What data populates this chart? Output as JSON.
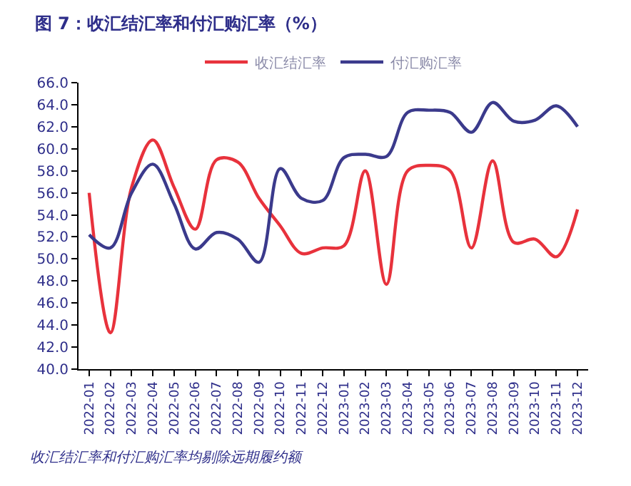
{
  "chart_data": {
    "type": "line",
    "title": "图 7：收汇结汇率和付汇购汇率（%）",
    "categories": [
      "2022-01",
      "2022-02",
      "2022-03",
      "2022-04",
      "2022-05",
      "2022-06",
      "2022-07",
      "2022-08",
      "2022-09",
      "2022-10",
      "2022-11",
      "2022-12",
      "2023-01",
      "2023-02",
      "2023-03",
      "2023-04",
      "2023-05",
      "2023-06",
      "2023-07",
      "2023-08",
      "2023-09",
      "2023-10",
      "2023-11",
      "2023-12"
    ],
    "series": [
      {
        "name": "收汇结汇率",
        "color": "#e8323c",
        "values": [
          56.0,
          43.3,
          56.5,
          60.8,
          56.5,
          52.7,
          59.0,
          58.8,
          55.5,
          53.0,
          50.5,
          51.0,
          51.2,
          58.0,
          47.7,
          58.0,
          58.5,
          58.0,
          51.0,
          58.9,
          51.5,
          51.8,
          50.2,
          54.5
        ]
      },
      {
        "name": "付汇购汇率",
        "color": "#3b3a8c",
        "values": [
          52.2,
          51.0,
          56.0,
          58.6,
          55.0,
          50.9,
          52.4,
          51.8,
          49.7,
          58.2,
          55.5,
          55.3,
          59.2,
          59.5,
          59.3,
          63.3,
          63.5,
          63.3,
          61.5,
          64.2,
          62.5,
          62.6,
          63.9,
          62.0
        ]
      }
    ],
    "ylim": [
      40,
      66
    ],
    "yticks": [
      {
        "value": 40,
        "label": "40.0"
      },
      {
        "value": 42,
        "label": "42.0"
      },
      {
        "value": 44,
        "label": "44.0"
      },
      {
        "value": 46,
        "label": "46.0"
      },
      {
        "value": 48,
        "label": "48.0"
      },
      {
        "value": 50,
        "label": "50.0"
      },
      {
        "value": 52,
        "label": "52.0"
      },
      {
        "value": 54,
        "label": "54.0"
      },
      {
        "value": 56,
        "label": "56.0"
      },
      {
        "value": 58,
        "label": "58.0"
      },
      {
        "value": 60,
        "label": "60.0"
      },
      {
        "value": 62,
        "label": "62.0"
      },
      {
        "value": 64,
        "label": "64.0"
      },
      {
        "value": 66,
        "label": "66.0"
      }
    ],
    "grid": false,
    "legend": "top",
    "marker": "none",
    "line_style": "solid",
    "annotations": [
      "收汇结汇率和付汇购汇率均剔除远期履约额"
    ]
  }
}
